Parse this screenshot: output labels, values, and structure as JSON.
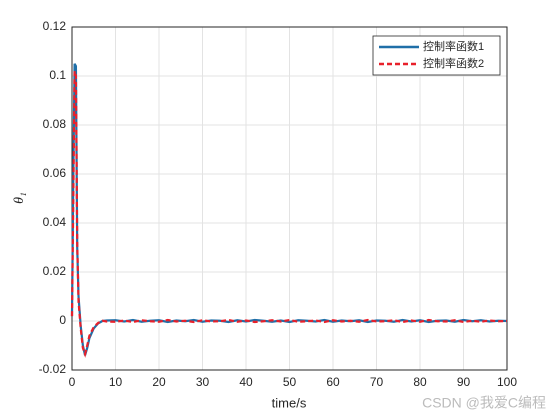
{
  "chart_data": {
    "type": "line",
    "xlabel": "time/s",
    "ylabel": "θ₁",
    "x": [
      0,
      0.3,
      0.6,
      0.9,
      1.2,
      1.5,
      2,
      2.5,
      3,
      3.5,
      4,
      5,
      6,
      7,
      8,
      10,
      12,
      14,
      16,
      18,
      20,
      22,
      24,
      26,
      28,
      30,
      32,
      34,
      36,
      38,
      40,
      42,
      44,
      46,
      48,
      50,
      52,
      54,
      56,
      58,
      60,
      62,
      64,
      66,
      68,
      70,
      72,
      74,
      76,
      78,
      80,
      82,
      84,
      86,
      88,
      90,
      92,
      94,
      96,
      98,
      100
    ],
    "series": [
      {
        "name": "控制率函数1",
        "color": "#1f6fa8",
        "dash": false,
        "values": [
          0.002,
          0.06,
          0.105,
          0.104,
          0.03,
          0.01,
          -0.002,
          -0.01,
          -0.014,
          -0.011,
          -0.007,
          -0.003,
          -0.001,
          0,
          0.0002,
          0.0003,
          -0.0002,
          0.0004,
          -0.0003,
          0.0001,
          0.0003,
          -0.0004,
          0.0002,
          -0.0001,
          0.0004,
          -0.0003,
          0.0002,
          0.0001,
          -0.0004,
          0.0003,
          -0.0002,
          0.0004,
          0.0001,
          -0.0003,
          0.0002,
          -0.0004,
          0.0003,
          0.0001,
          -0.0002,
          0.0004,
          -0.0003,
          0.0002,
          -0.0001,
          0.0003,
          -0.0004,
          0.0002,
          0.0001,
          -0.0003,
          0.0004,
          -0.0002,
          0.0003,
          -0.0004,
          0.0001,
          0.0002,
          -0.0003,
          0.0004,
          -0.0001,
          0.0003,
          -0.0002,
          0.0001,
          0
        ]
      },
      {
        "name": "控制率函数2",
        "color": "#e8202a",
        "dash": true,
        "values": [
          0.002,
          0.05,
          0.102,
          0.1,
          0.032,
          0.008,
          -0.003,
          -0.011,
          -0.0135,
          -0.01,
          -0.006,
          -0.0025,
          -0.0008,
          0.0001,
          -0.0002,
          -0.0003,
          0.0002,
          -0.0004,
          0.0003,
          -0.0001,
          -0.0003,
          0.0004,
          -0.0002,
          0.0001,
          -0.0004,
          0.0003,
          -0.0002,
          -0.0001,
          0.0004,
          -0.0003,
          0.0002,
          -0.0004,
          -0.0001,
          0.0003,
          -0.0002,
          0.0004,
          -0.0003,
          -0.0001,
          0.0002,
          -0.0004,
          0.0003,
          -0.0002,
          0.0001,
          -0.0003,
          0.0004,
          -0.0002,
          -0.0001,
          0.0003,
          -0.0004,
          0.0002,
          -0.0003,
          0.0004,
          -0.0001,
          -0.0002,
          0.0003,
          -0.0004,
          0.0001,
          -0.0003,
          0.0002,
          -0.0001,
          0
        ]
      }
    ],
    "xlim": [
      0,
      100
    ],
    "xticks": [
      0,
      10,
      20,
      30,
      40,
      50,
      60,
      70,
      80,
      90,
      100
    ],
    "ylim": [
      -0.02,
      0.12
    ],
    "yticks": [
      -0.02,
      0,
      0.02,
      0.04,
      0.06,
      0.08,
      0.1,
      0.12
    ],
    "grid": true,
    "legend": "upper-right",
    "annotation": "CSDN @我爱C编程"
  }
}
